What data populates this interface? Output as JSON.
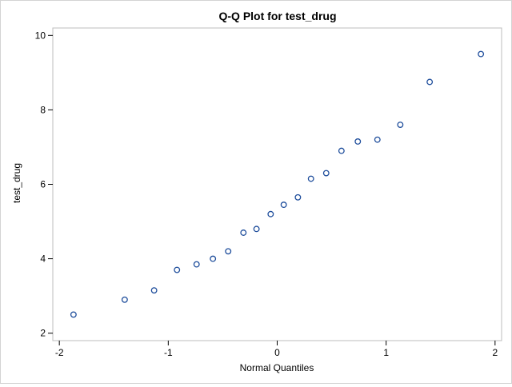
{
  "chart_data": {
    "type": "scatter",
    "title": "Q-Q Plot for test_drug",
    "xlabel": "Normal Quantiles",
    "ylabel": "test_drug",
    "xlim": [
      -2.06,
      2.06
    ],
    "ylim": [
      1.8,
      10.2
    ],
    "xticks": [
      -2,
      -1,
      0,
      1,
      2
    ],
    "yticks": [
      2,
      4,
      6,
      8,
      10
    ],
    "grid": false,
    "legend": "none",
    "marker": "open-circle",
    "marker_color": "#1f4e9c",
    "x": [
      -1.87,
      -1.4,
      -1.13,
      -0.92,
      -0.74,
      -0.59,
      -0.45,
      -0.31,
      -0.19,
      -0.06,
      0.06,
      0.19,
      0.31,
      0.45,
      0.59,
      0.74,
      0.92,
      1.13,
      1.4,
      1.87
    ],
    "y": [
      2.5,
      2.9,
      3.15,
      3.7,
      3.85,
      4.0,
      4.2,
      4.7,
      4.8,
      5.2,
      5.45,
      5.65,
      6.15,
      6.3,
      6.9,
      7.15,
      7.2,
      7.6,
      8.75,
      9.5
    ]
  }
}
